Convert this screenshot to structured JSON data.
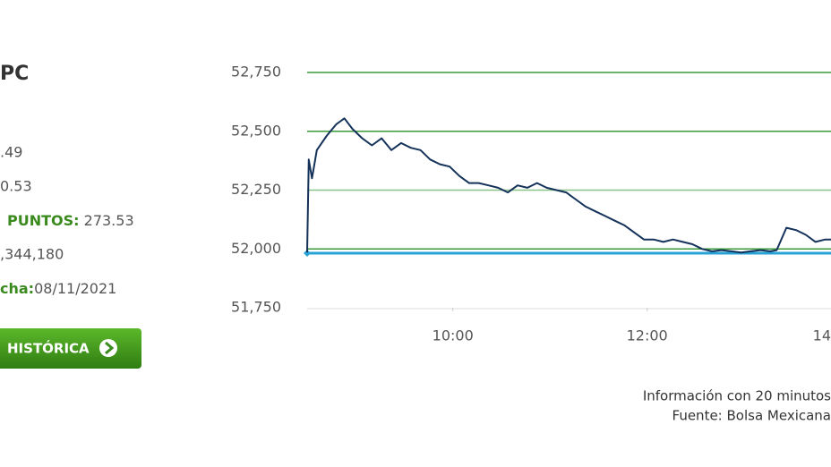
{
  "panel": {
    "title": "PC",
    "line1": ".49",
    "line2": "0.53",
    "points_label": "PUNTOS:",
    "points_value": " 273.53",
    "volume": ",344,180",
    "date_label": "cha:",
    "date_value": "08/11/2021",
    "button": "HISTÓRICA"
  },
  "chart_data": {
    "type": "line",
    "x": [
      510,
      511,
      513,
      516,
      522,
      528,
      533,
      538,
      544,
      550,
      556,
      562,
      568,
      574,
      580,
      586,
      592,
      598,
      604,
      610,
      616,
      622,
      628,
      634,
      640,
      646,
      652,
      658,
      664,
      670,
      676,
      682,
      688,
      694,
      700,
      706,
      712,
      718,
      724,
      730,
      736,
      742,
      748,
      754,
      760,
      766,
      772,
      778,
      784,
      790,
      796,
      800,
      806,
      812,
      818,
      824,
      830,
      834
    ],
    "series": [
      {
        "color": "#14325a",
        "values": [
          51985,
          52380,
          52300,
          52420,
          52480,
          52530,
          52555,
          52510,
          52470,
          52440,
          52470,
          52420,
          52450,
          52430,
          52420,
          52380,
          52360,
          52350,
          52310,
          52280,
          52280,
          52270,
          52260,
          52240,
          52270,
          52260,
          52280,
          52260,
          52250,
          52240,
          52210,
          52180,
          52160,
          52140,
          52120,
          52100,
          52070,
          52040,
          52040,
          52030,
          52040,
          52030,
          52020,
          52000,
          51990,
          51995,
          51990,
          51985,
          51990,
          51995,
          51990,
          51995,
          52090,
          52080,
          52060,
          52030,
          52040,
          52040
        ]
      }
    ],
    "reference": 51982,
    "reference_color": "#29a3d6",
    "xlim": [
      510,
      834
    ],
    "xticks": [
      {
        "value": 600,
        "label": "10:00"
      },
      {
        "value": 720,
        "label": "12:00"
      },
      {
        "value": 840,
        "label": "14"
      }
    ],
    "ylim": [
      51750,
      52750
    ],
    "yticks": [
      {
        "value": 51750,
        "label": "51,750"
      },
      {
        "value": 52000,
        "label": "52,000"
      },
      {
        "value": 52250,
        "label": "52,250"
      },
      {
        "value": 52500,
        "label": "52,500"
      },
      {
        "value": 52750,
        "label": "52,750"
      }
    ],
    "grid": true,
    "grid_color": "#3a9a3a",
    "notes": [
      "Información con 20 minutos",
      "Fuente: Bolsa Mexicana"
    ]
  }
}
